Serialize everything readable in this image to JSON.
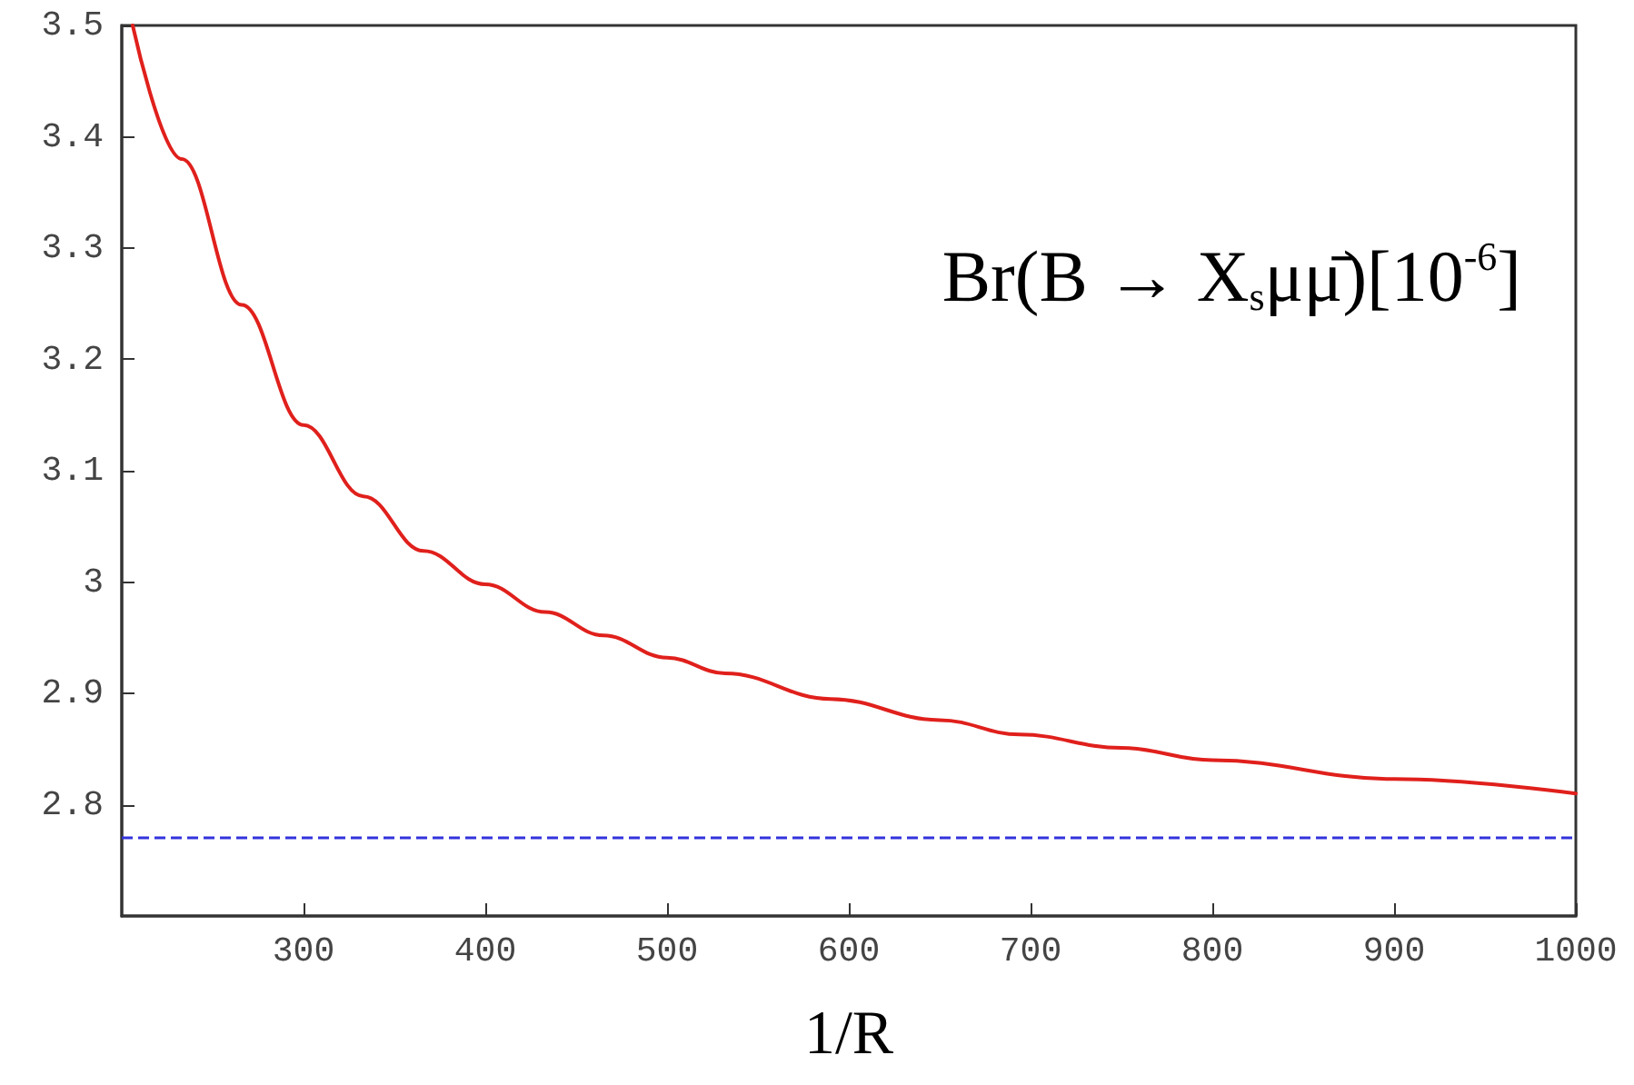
{
  "chart_data": {
    "type": "line",
    "xlabel": "1/R",
    "annotations": [
      "Br(B → X$_{s}$μμ̄)[10$^{-6}$]"
    ],
    "series": [
      {
        "color": "#e0201c",
        "x": [
          206,
          233,
          266,
          300,
          333,
          366,
          400,
          433,
          465,
          500,
          532,
          590,
          650,
          694,
          750,
          800,
          900,
          1000
        ],
        "values": [
          3.5,
          3.38,
          3.249,
          3.141,
          3.077,
          3.028,
          2.998,
          2.973,
          2.952,
          2.932,
          2.918,
          2.895,
          2.876,
          2.863,
          2.851,
          2.84,
          2.823,
          2.81
        ]
      }
    ],
    "ref_lines": [
      {
        "axis": "y",
        "value": 2.77,
        "color": "#3333dd",
        "line_style": "dashed"
      }
    ],
    "xlim": [
      200,
      1000
    ],
    "xticks": [
      300,
      400,
      500,
      600,
      700,
      800,
      900,
      1000
    ],
    "ylim": [
      2.7,
      3.5
    ],
    "yticks": [
      2.8,
      2.9,
      3,
      3.1,
      3.2,
      3.3,
      3.4,
      3.5
    ],
    "grid": false,
    "marker": "none",
    "line_style": "solid"
  }
}
